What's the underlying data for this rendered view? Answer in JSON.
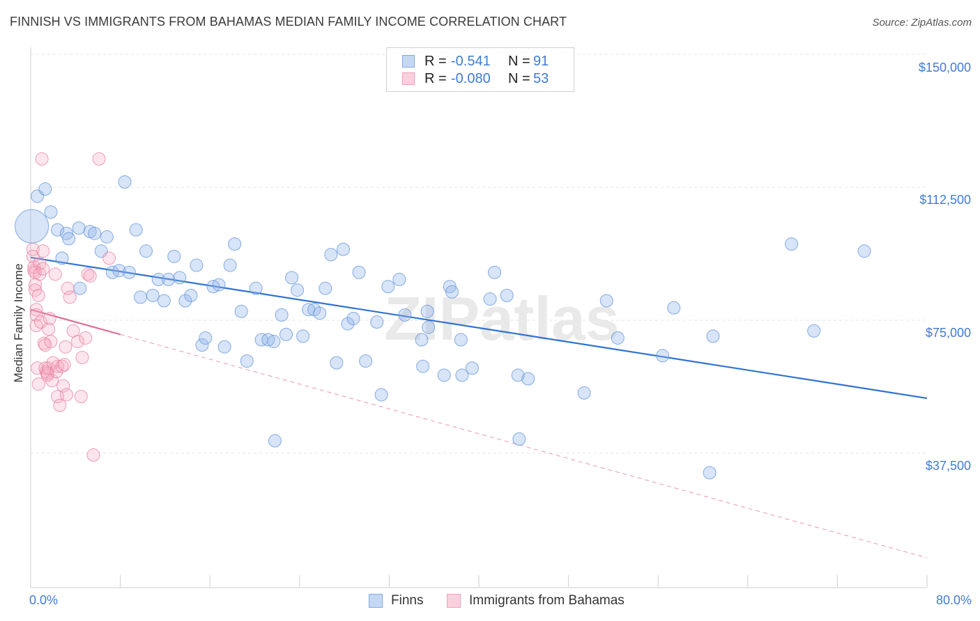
{
  "title": "FINNISH VS IMMIGRANTS FROM BAHAMAS MEDIAN FAMILY INCOME CORRELATION CHART",
  "source": "Source: ZipAtlas.com",
  "watermark": "ZIPatlas",
  "legend": {
    "rows": [
      {
        "r_label": "R =",
        "r_value": "-0.541",
        "n_label": "N =",
        "n_value": "91",
        "color": "#a9c6ef",
        "border": "#5f93da"
      },
      {
        "r_label": "R =",
        "r_value": "-0.080",
        "n_label": "N =",
        "n_value": "53",
        "color": "#f6b8cb",
        "border": "#e77fa1"
      }
    ]
  },
  "bottom_legend": {
    "finns": "Finns",
    "bahamas": "Immigrants from Bahamas"
  },
  "colors": {
    "blue": "#5f93da",
    "blue_fill": "rgba(143,179,231,0.35)",
    "blue_line": "#2f72d4",
    "pink": "#e77fa1",
    "pink_fill": "rgba(244,170,193,0.30)",
    "pink_line": "#e06a92",
    "grid": "#e6e6e6",
    "axis_label": "#3f7bd6"
  },
  "chart_data": {
    "type": "scatter",
    "title": "FINNISH VS IMMIGRANTS FROM BAHAMAS MEDIAN FAMILY INCOME CORRELATION CHART",
    "xlabel": "",
    "ylabel": "Median Family Income",
    "xlim": [
      0,
      80
    ],
    "ylim": [
      0,
      157000
    ],
    "x_tick_labels": [
      "0.0%",
      "80.0%"
    ],
    "y_ticks": [
      37500,
      75000,
      112500,
      150000
    ],
    "y_tick_labels": [
      "$37,500",
      "$75,000",
      "$112,500",
      "$150,000"
    ],
    "grid": true,
    "legend_position": "top-center",
    "series": [
      {
        "name": "Finns",
        "points": [
          [
            0.1,
            101500
          ],
          [
            0.6,
            110000
          ],
          [
            1.3,
            112000
          ],
          [
            1.8,
            105500
          ],
          [
            2.4,
            100500
          ],
          [
            2.8,
            92500
          ],
          [
            3.2,
            99500
          ],
          [
            3.4,
            98000
          ],
          [
            4.3,
            101000
          ],
          [
            4.4,
            84000
          ],
          [
            5.3,
            100000
          ],
          [
            5.7,
            99500
          ],
          [
            6.3,
            94500
          ],
          [
            6.8,
            98500
          ],
          [
            7.3,
            88500
          ],
          [
            7.9,
            89000
          ],
          [
            8.4,
            114000
          ],
          [
            8.8,
            88500
          ],
          [
            9.4,
            100500
          ],
          [
            9.8,
            81500
          ],
          [
            10.3,
            94500
          ],
          [
            10.9,
            82000
          ],
          [
            11.4,
            86500
          ],
          [
            11.9,
            80500
          ],
          [
            12.3,
            86500
          ],
          [
            12.8,
            93000
          ],
          [
            13.3,
            87000
          ],
          [
            13.8,
            80500
          ],
          [
            14.3,
            82000
          ],
          [
            14.8,
            90500
          ],
          [
            15.3,
            68000
          ],
          [
            15.6,
            70000
          ],
          [
            16.3,
            84500
          ],
          [
            16.8,
            85000
          ],
          [
            17.3,
            67500
          ],
          [
            17.8,
            90500
          ],
          [
            18.2,
            96500
          ],
          [
            18.8,
            77500
          ],
          [
            19.3,
            63500
          ],
          [
            20.1,
            84000
          ],
          [
            20.6,
            69500
          ],
          [
            21.2,
            69500
          ],
          [
            21.7,
            69000
          ],
          [
            21.8,
            41000
          ],
          [
            22.4,
            76500
          ],
          [
            22.8,
            71000
          ],
          [
            23.3,
            87000
          ],
          [
            23.8,
            83500
          ],
          [
            24.3,
            70500
          ],
          [
            24.8,
            78000
          ],
          [
            25.3,
            78000
          ],
          [
            25.8,
            77000
          ],
          [
            26.3,
            84000
          ],
          [
            26.8,
            93500
          ],
          [
            27.3,
            63000
          ],
          [
            27.9,
            95000
          ],
          [
            28.3,
            74000
          ],
          [
            28.8,
            75500
          ],
          [
            29.3,
            88500
          ],
          [
            29.9,
            63500
          ],
          [
            30.9,
            74500
          ],
          [
            31.3,
            54000
          ],
          [
            31.9,
            84500
          ],
          [
            32.9,
            86500
          ],
          [
            33.4,
            76500
          ],
          [
            34.9,
            69500
          ],
          [
            35.0,
            62000
          ],
          [
            35.4,
            77500
          ],
          [
            35.5,
            73000
          ],
          [
            36.9,
            59500
          ],
          [
            37.4,
            84500
          ],
          [
            37.6,
            83000
          ],
          [
            38.4,
            69500
          ],
          [
            38.5,
            59500
          ],
          [
            39.4,
            61500
          ],
          [
            41.0,
            81000
          ],
          [
            41.4,
            88500
          ],
          [
            42.5,
            82000
          ],
          [
            43.5,
            59500
          ],
          [
            43.6,
            41500
          ],
          [
            44.4,
            58500
          ],
          [
            49.4,
            54500
          ],
          [
            51.4,
            80500
          ],
          [
            52.4,
            70000
          ],
          [
            56.4,
            65000
          ],
          [
            57.4,
            78500
          ],
          [
            60.6,
            32000
          ],
          [
            60.9,
            70500
          ],
          [
            67.9,
            96500
          ],
          [
            69.9,
            72000
          ],
          [
            74.4,
            94500
          ]
        ],
        "sizes": {
          "0": 24
        }
      },
      {
        "name": "Immigrants from Bahamas",
        "points": [
          [
            0.2,
            95000
          ],
          [
            0.2,
            93000
          ],
          [
            0.3,
            90000
          ],
          [
            0.3,
            89000
          ],
          [
            0.4,
            88500
          ],
          [
            0.4,
            85000
          ],
          [
            0.4,
            83500
          ],
          [
            0.5,
            78000
          ],
          [
            0.5,
            76500
          ],
          [
            0.5,
            73500
          ],
          [
            0.6,
            61500
          ],
          [
            0.7,
            57000
          ],
          [
            0.7,
            82000
          ],
          [
            0.8,
            91000
          ],
          [
            0.8,
            88000
          ],
          [
            0.9,
            74500
          ],
          [
            1.0,
            120500
          ],
          [
            1.1,
            94500
          ],
          [
            1.1,
            89500
          ],
          [
            1.2,
            68500
          ],
          [
            1.3,
            68000
          ],
          [
            1.3,
            61500
          ],
          [
            1.4,
            60500
          ],
          [
            1.5,
            59500
          ],
          [
            1.5,
            60000
          ],
          [
            1.6,
            72500
          ],
          [
            1.6,
            61500
          ],
          [
            1.7,
            75500
          ],
          [
            1.8,
            69000
          ],
          [
            1.9,
            58000
          ],
          [
            2.0,
            63000
          ],
          [
            2.2,
            88000
          ],
          [
            2.3,
            60500
          ],
          [
            2.4,
            62000
          ],
          [
            2.4,
            53500
          ],
          [
            2.6,
            51000
          ],
          [
            2.8,
            62000
          ],
          [
            2.9,
            56500
          ],
          [
            3.0,
            62500
          ],
          [
            3.1,
            67500
          ],
          [
            3.2,
            54000
          ],
          [
            3.3,
            84000
          ],
          [
            3.5,
            81500
          ],
          [
            3.8,
            72000
          ],
          [
            4.2,
            69000
          ],
          [
            4.5,
            53500
          ],
          [
            4.6,
            64500
          ],
          [
            4.9,
            70000
          ],
          [
            5.1,
            88000
          ],
          [
            5.3,
            87500
          ],
          [
            5.6,
            37000
          ],
          [
            6.1,
            120500
          ],
          [
            7.0,
            92500
          ]
        ]
      }
    ],
    "trend_lines": [
      {
        "series": "Finns",
        "x": [
          0,
          80
        ],
        "y": [
          92700,
          53000
        ],
        "style": "solid"
      },
      {
        "series": "Immigrants from Bahamas",
        "x": [
          0,
          8
        ],
        "y": [
          78000,
          71000
        ],
        "style": "solid"
      },
      {
        "series": "Immigrants from Bahamas",
        "x": [
          8,
          80
        ],
        "y": [
          71000,
          8000
        ],
        "style": "dashed"
      }
    ]
  }
}
